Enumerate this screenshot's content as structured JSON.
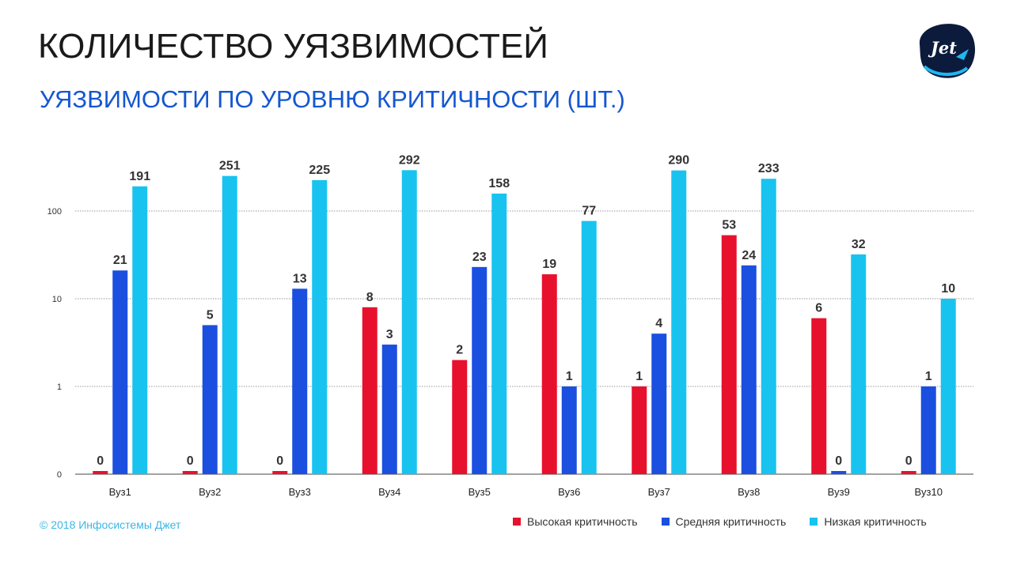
{
  "slide": {
    "title": "КОЛИЧЕСТВО УЯЗВИМОСТЕЙ",
    "subtitle": "УЯЗВИМОСТИ ПО УРОВНЮ КРИТИЧНОСТИ (ШТ.)",
    "footer": "© 2018 Инфосистемы Джет",
    "logo_text": "Jet"
  },
  "colors": {
    "high": "#e8112d",
    "medium": "#1a4fe0",
    "low": "#18c3f0",
    "grid": "#9a9a9a",
    "axis": "#444444"
  },
  "legend": [
    {
      "label": "Высокая критичность",
      "color": "#e8112d"
    },
    {
      "label": "Средняя критичность",
      "color": "#1a4fe0"
    },
    {
      "label": "Низкая критичность",
      "color": "#18c3f0"
    }
  ],
  "chart_data": {
    "type": "bar",
    "title": "УЯЗВИМОСТИ ПО УРОВНЮ КРИТИЧНОСТИ (ШТ.)",
    "yscale": "log",
    "ytick_labels": [
      "0",
      "1",
      "10",
      "100"
    ],
    "categories": [
      "Вуз1",
      "Вуз2",
      "Вуз3",
      "Вуз4",
      "Вуз5",
      "Вуз6",
      "Вуз7",
      "Вуз8",
      "Вуз9",
      "Вуз10"
    ],
    "series": [
      {
        "name": "Высокая критичность",
        "color": "#e8112d",
        "values": [
          0,
          0,
          0,
          8,
          2,
          19,
          1,
          53,
          6,
          0
        ]
      },
      {
        "name": "Средняя критичность",
        "color": "#1a4fe0",
        "values": [
          21,
          5,
          13,
          3,
          23,
          1,
          4,
          24,
          0,
          1
        ]
      },
      {
        "name": "Низкая критичность",
        "color": "#18c3f0",
        "values": [
          191,
          251,
          225,
          292,
          158,
          77,
          290,
          233,
          32,
          10
        ]
      }
    ],
    "legend_position": "bottom-right"
  }
}
